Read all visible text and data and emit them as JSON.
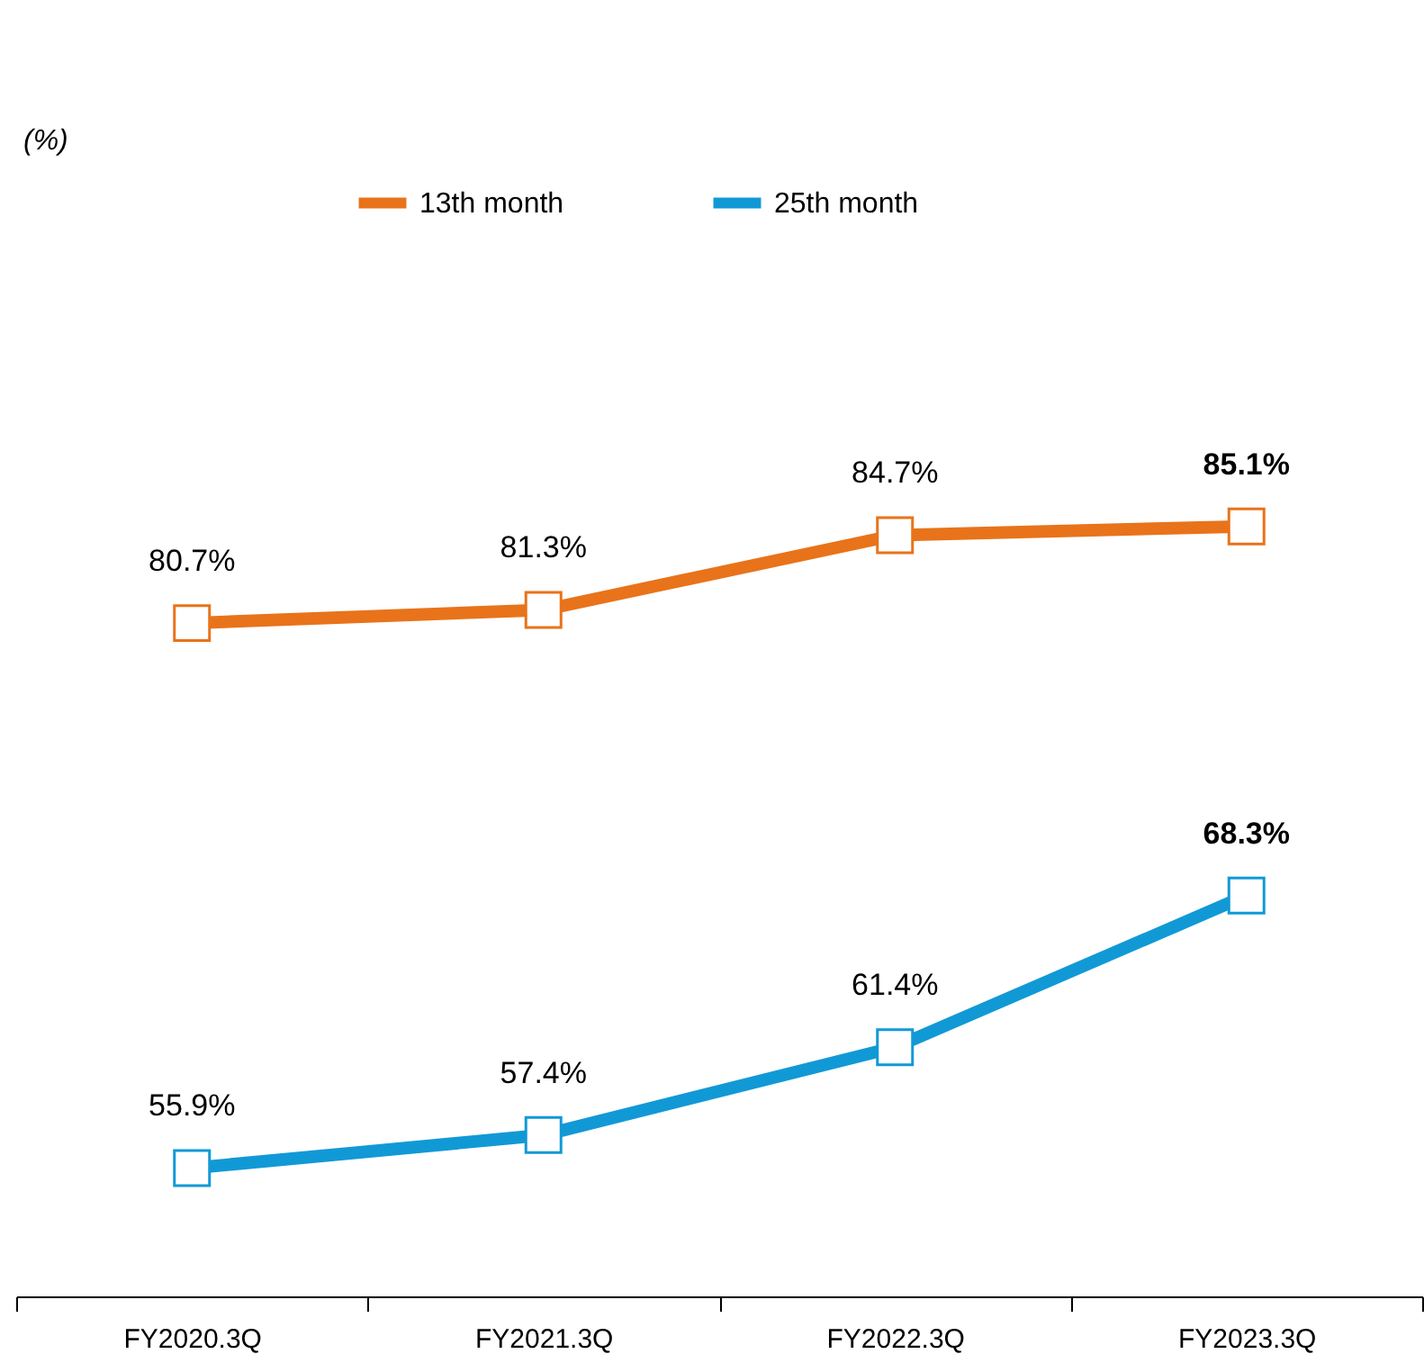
{
  "chart_data": {
    "type": "line",
    "categories": [
      "FY2020.3Q",
      "FY2021.3Q",
      "FY2022.3Q",
      "FY2023.3Q"
    ],
    "series": [
      {
        "name": "13th month",
        "color": "#e8731a",
        "values": [
          80.7,
          81.3,
          84.7,
          85.1
        ],
        "value_labels": [
          "80.7%",
          "81.3%",
          "84.7%",
          "85.1%"
        ]
      },
      {
        "name": "25th month",
        "color": "#1199d6",
        "values": [
          55.9,
          57.4,
          61.4,
          68.3
        ],
        "value_labels": [
          "55.9%",
          "57.4%",
          "61.4%",
          "68.3%"
        ]
      }
    ],
    "annotations": [
      "(%)"
    ],
    "marker": "square",
    "line_style": "solid",
    "legend": "top",
    "grid": false,
    "tick_labels": "x"
  }
}
